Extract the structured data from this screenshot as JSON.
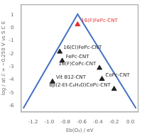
{
  "chart_data": {
    "type": "scatter",
    "xlabel": "Eb(O₂) / eV",
    "ylabel": "log / at ℰ = −0.250 V vs S C E",
    "xlim": [
      -1.35,
      0.1
    ],
    "ylim": [
      -6.5,
      1.8
    ],
    "xticks": [
      -1.2,
      {
        "value": -1.0,
        "label": "-1.0"
      },
      -0.8,
      -0.6,
      -0.4,
      -0.2,
      {
        "value": 0.0,
        "label": "0.0"
      }
    ],
    "yticks": [
      -6,
      -5,
      -4,
      -3,
      -2,
      -1,
      0,
      1
    ],
    "grid": false,
    "series": [
      {
        "type": "line",
        "color": "#4472c4",
        "x": [
          -1.32,
          -0.65,
          0.07
        ],
        "values": [
          -6.2,
          1.05,
          -6.2
        ]
      },
      {
        "type": "scatter",
        "marker": "triangle",
        "x": [
          -0.65,
          -0.87,
          -0.84,
          -0.96,
          -0.38,
          -0.35,
          -0.2
        ],
        "values": [
          0.25,
          -1.85,
          -2.55,
          -4.15,
          -3.1,
          -3.95,
          -4.72
        ],
        "labels": [
          "16(F)FePc-CNT",
          "16(Cl)FePc-CNT",
          "FePc-CNT",
          "Vit B12-CNT",
          "16(F)CoPc-CNT",
          "CoPc-CNT",
          "8β(2-Et-C₆H₄O)CoPc-CNT"
        ],
        "colors": [
          "#e03030",
          "#222222",
          "#222222",
          "#222222",
          "#222222",
          "#222222",
          "#222222"
        ]
      }
    ]
  }
}
